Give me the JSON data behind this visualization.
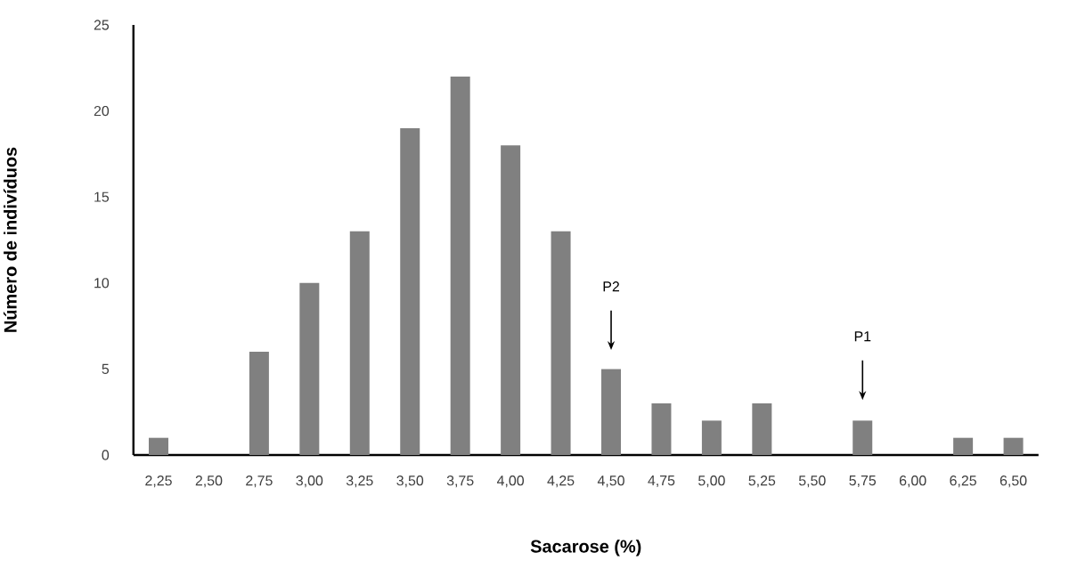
{
  "chart_data": {
    "type": "bar",
    "categories": [
      "2,25",
      "2,50",
      "2,75",
      "3,00",
      "3,25",
      "3,50",
      "3,75",
      "4,00",
      "4,25",
      "4,50",
      "4,75",
      "5,00",
      "5,25",
      "5,50",
      "5,75",
      "6,00",
      "6,25",
      "6,50"
    ],
    "values": [
      1,
      0,
      6,
      10,
      13,
      19,
      22,
      18,
      13,
      5,
      3,
      2,
      3,
      0,
      2,
      0,
      1,
      1
    ],
    "color": "#808080",
    "xlabel": "Sacarose (%)",
    "ylabel": "Número de indivíduos",
    "ylim": [
      0,
      25
    ],
    "yticks": [
      0,
      5,
      10,
      15,
      20,
      25
    ],
    "grid": false,
    "annotations": [
      "P2",
      "P1"
    ]
  }
}
